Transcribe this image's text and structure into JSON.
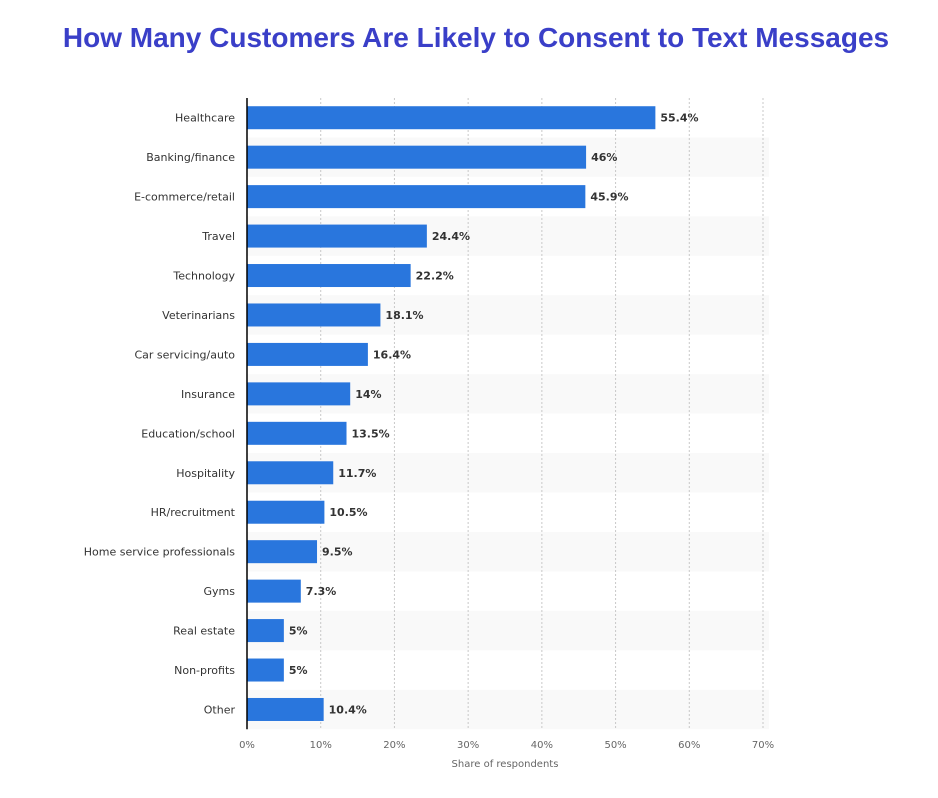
{
  "title": "How Many Customers Are Likely to Consent to Text Messages",
  "chart_data": {
    "type": "bar",
    "orientation": "horizontal",
    "title": "How Many Customers Are Likely to Consent to Text Messages",
    "xlabel": "Share of respondents",
    "ylabel": "",
    "xlim": [
      0,
      70
    ],
    "xticks": [
      "0%",
      "10%",
      "20%",
      "30%",
      "40%",
      "50%",
      "60%",
      "70%"
    ],
    "grid": true,
    "bar_color": "#2976dd",
    "categories": [
      "Healthcare",
      "Banking/finance",
      "E-commerce/retail",
      "Travel",
      "Technology",
      "Veterinarians",
      "Car servicing/auto",
      "Insurance",
      "Education/school",
      "Hospitality",
      "HR/recruitment",
      "Home service professionals",
      "Gyms",
      "Real estate",
      "Non-profits",
      "Other"
    ],
    "values": [
      55.4,
      46,
      45.9,
      24.4,
      22.2,
      18.1,
      16.4,
      14,
      13.5,
      11.7,
      10.5,
      9.5,
      7.3,
      5,
      5,
      10.4
    ],
    "labels": [
      "55.4%",
      "46%",
      "45.9%",
      "24.4%",
      "22.2%",
      "18.1%",
      "16.4%",
      "14%",
      "13.5%",
      "11.7%",
      "10.5%",
      "9.5%",
      "7.3%",
      "5%",
      "5%",
      "10.4%"
    ]
  }
}
